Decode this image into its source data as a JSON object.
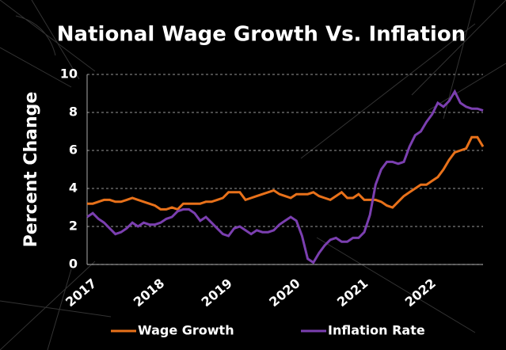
{
  "chart_data": {
    "type": "line",
    "title": "National Wage Growth Vs. Inflation",
    "y_label": "Percent Change",
    "categories": [
      "2017",
      null,
      null,
      null,
      null,
      null,
      null,
      null,
      null,
      null,
      null,
      null,
      "2018",
      null,
      null,
      null,
      null,
      null,
      null,
      null,
      null,
      null,
      null,
      null,
      "2019",
      null,
      null,
      null,
      null,
      null,
      null,
      null,
      null,
      null,
      null,
      null,
      "2020",
      null,
      null,
      null,
      null,
      null,
      null,
      null,
      null,
      null,
      null,
      null,
      "2021",
      null,
      null,
      null,
      null,
      null,
      null,
      null,
      null,
      null,
      null,
      null,
      "2022",
      null,
      null,
      null,
      null,
      null,
      null,
      null,
      null,
      null,
      null
    ],
    "series": [
      {
        "name": "Wage Growth",
        "color": "#e8711a",
        "values": [
          3.2,
          3.2,
          3.3,
          3.4,
          3.4,
          3.3,
          3.3,
          3.4,
          3.5,
          3.4,
          3.3,
          3.2,
          3.1,
          2.9,
          2.9,
          3.0,
          2.9,
          3.2,
          3.2,
          3.2,
          3.2,
          3.3,
          3.3,
          3.4,
          3.5,
          3.8,
          3.8,
          3.8,
          3.4,
          3.5,
          3.6,
          3.7,
          3.8,
          3.9,
          3.7,
          3.6,
          3.5,
          3.7,
          3.7,
          3.7,
          3.8,
          3.6,
          3.5,
          3.4,
          3.6,
          3.8,
          3.5,
          3.5,
          3.7,
          3.4,
          3.4,
          3.4,
          3.3,
          3.1,
          3.0,
          3.3,
          3.6,
          3.8,
          4.0,
          4.2,
          4.2,
          4.4,
          4.6,
          5.0,
          5.5,
          5.9,
          6.0,
          6.1,
          6.7,
          6.7,
          6.2
        ]
      },
      {
        "name": "Inflation Rate",
        "color": "#7b3fb0",
        "values": [
          2.5,
          2.7,
          2.4,
          2.2,
          1.9,
          1.6,
          1.7,
          1.9,
          2.2,
          2.0,
          2.2,
          2.1,
          2.1,
          2.2,
          2.4,
          2.5,
          2.8,
          2.9,
          2.9,
          2.7,
          2.3,
          2.5,
          2.2,
          1.9,
          1.6,
          1.5,
          1.9,
          2.0,
          1.8,
          1.6,
          1.8,
          1.7,
          1.7,
          1.8,
          2.1,
          2.3,
          2.5,
          2.3,
          1.5,
          0.3,
          0.1,
          0.6,
          1.0,
          1.3,
          1.4,
          1.2,
          1.2,
          1.4,
          1.4,
          1.7,
          2.6,
          4.2,
          5.0,
          5.4,
          5.4,
          5.3,
          5.4,
          6.2,
          6.8,
          7.0,
          7.5,
          7.9,
          8.5,
          8.3,
          8.6,
          9.1,
          8.5,
          8.3,
          8.2,
          8.2,
          8.1
        ]
      }
    ],
    "ylim": [
      0,
      10
    ],
    "yticks": [
      0,
      2,
      4,
      6,
      8,
      10
    ],
    "grid": true,
    "legend": "bottom"
  }
}
